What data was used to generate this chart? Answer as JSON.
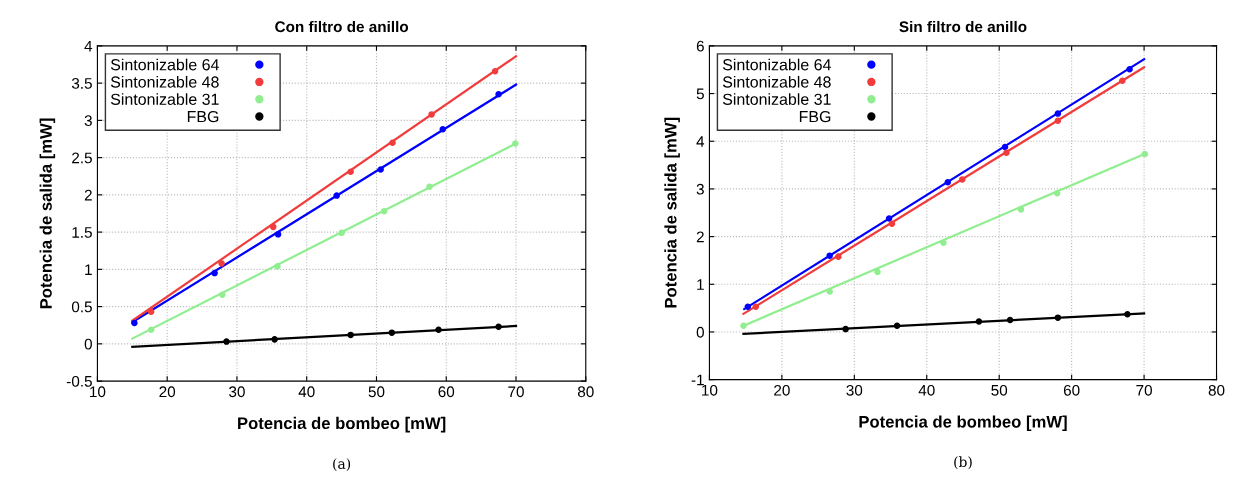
{
  "chart_data": [
    {
      "type": "scatter",
      "title": "Con filtro de anillo",
      "xlabel": "Potencia de bombeo [mW]",
      "ylabel": "Potencia de salida [mW]",
      "annotations": [
        "(a)"
      ],
      "xlim": [
        10,
        80
      ],
      "xticks": [
        10,
        20,
        30,
        40,
        50,
        60,
        70,
        80
      ],
      "ylim": [
        -0.5,
        4
      ],
      "yticks": [
        -0.5,
        0,
        0.5,
        1,
        1.5,
        2,
        2.5,
        3,
        3.5,
        4
      ],
      "grid": true,
      "legend": "top left",
      "marker": "circle",
      "series": [
        {
          "name": "Sintonizable 64",
          "color": "#0000ff",
          "x": [
            15.3,
            26.8,
            35.9,
            44.3,
            50.6,
            59.5,
            67.5
          ],
          "values": [
            0.28,
            0.95,
            1.47,
            1.99,
            2.34,
            2.88,
            3.35
          ]
        },
        {
          "name": "Sintonizable 48",
          "color": "#f03c3c",
          "x": [
            17.7,
            27.8,
            35.2,
            46.3,
            52.3,
            57.9,
            67.0
          ],
          "values": [
            0.43,
            1.08,
            1.57,
            2.31,
            2.7,
            3.08,
            3.66
          ]
        },
        {
          "name": "Sintonizable 31",
          "color": "#90ee90",
          "x": [
            17.7,
            27.9,
            35.8,
            45.0,
            51.1,
            57.6,
            69.9
          ],
          "values": [
            0.19,
            0.66,
            1.04,
            1.49,
            1.78,
            2.11,
            2.69
          ]
        },
        {
          "name": "FBG",
          "color": "#000000",
          "x": [
            28.5,
            35.4,
            46.3,
            52.2,
            58.9,
            67.5
          ],
          "values": [
            0.03,
            0.06,
            0.12,
            0.15,
            0.19,
            0.23
          ]
        },
        {
          "type": "line",
          "marker": "none",
          "color": "#0000ff",
          "x": [
            15,
            70
          ],
          "values": [
            0.29,
            3.48
          ]
        },
        {
          "type": "line",
          "marker": "none",
          "color": "#f03c3c",
          "x": [
            15,
            70
          ],
          "values": [
            0.31,
            3.86
          ]
        },
        {
          "type": "line",
          "marker": "none",
          "color": "#90ee90",
          "x": [
            15,
            70
          ],
          "values": [
            0.07,
            2.69
          ]
        },
        {
          "type": "line",
          "marker": "none",
          "color": "#000000",
          "x": [
            15,
            70
          ],
          "values": [
            -0.04,
            0.24
          ]
        }
      ]
    },
    {
      "type": "scatter",
      "title": "Sin filtro de anillo",
      "xlabel": "Potencia de bombeo [mW]",
      "ylabel": "Potencia de salida [mW]",
      "annotations": [
        "(b)"
      ],
      "xlim": [
        10,
        80
      ],
      "xticks": [
        10,
        20,
        30,
        40,
        50,
        60,
        70,
        80
      ],
      "ylim": [
        -1,
        6
      ],
      "yticks": [
        -1,
        0,
        1,
        2,
        3,
        4,
        5,
        6
      ],
      "grid": true,
      "legend": "top left",
      "marker": "circle",
      "series": [
        {
          "name": "Sintonizable 64",
          "color": "#0000ff",
          "x": [
            15.3,
            26.6,
            34.8,
            42.9,
            50.8,
            58.1,
            68.0
          ],
          "values": [
            0.53,
            1.6,
            2.38,
            3.14,
            3.88,
            4.58,
            5.51
          ]
        },
        {
          "name": "Sintonizable 48",
          "color": "#f03c3c",
          "x": [
            16.4,
            27.8,
            35.2,
            44.9,
            51.0,
            58.1,
            67.0
          ],
          "values": [
            0.53,
            1.58,
            2.27,
            3.2,
            3.76,
            4.43,
            5.27
          ]
        },
        {
          "name": "Sintonizable 31",
          "color": "#90ee90",
          "x": [
            14.7,
            26.6,
            33.2,
            42.3,
            53.0,
            58.0,
            70.1
          ],
          "values": [
            0.13,
            0.85,
            1.26,
            1.87,
            2.57,
            2.91,
            3.73
          ]
        },
        {
          "name": "FBG",
          "color": "#000000",
          "x": [
            28.8,
            35.9,
            47.2,
            51.5,
            58.1,
            67.7
          ],
          "values": [
            0.06,
            0.13,
            0.22,
            0.25,
            0.3,
            0.37
          ]
        },
        {
          "type": "line",
          "marker": "none",
          "color": "#0000ff",
          "x": [
            14.8,
            70
          ],
          "values": [
            0.48,
            5.72
          ]
        },
        {
          "type": "line",
          "marker": "none",
          "color": "#f03c3c",
          "x": [
            14.7,
            70
          ],
          "values": [
            0.38,
            5.55
          ]
        },
        {
          "type": "line",
          "marker": "none",
          "color": "#90ee90",
          "x": [
            14.7,
            70
          ],
          "values": [
            0.13,
            3.73
          ]
        },
        {
          "type": "line",
          "marker": "none",
          "color": "#000000",
          "x": [
            14.7,
            70
          ],
          "values": [
            -0.04,
            0.39
          ]
        }
      ]
    }
  ]
}
